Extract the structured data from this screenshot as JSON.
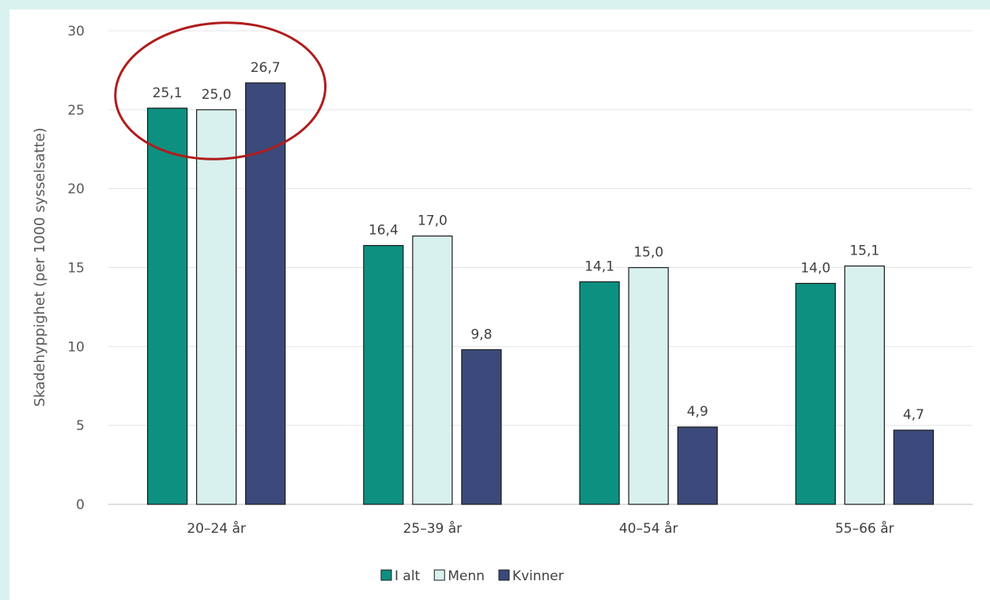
{
  "colors": {
    "page_background": "#d9f1ef",
    "highlight_ring": "#b01c1c"
  },
  "chart_data": {
    "type": "bar",
    "ylabel": "Skadehyppighet (per 1000 sysselsatte)",
    "xlabel": "",
    "ylim": [
      0,
      30
    ],
    "yticks": [
      0,
      5,
      10,
      15,
      20,
      25,
      30
    ],
    "grid": "horizontal",
    "legend_position": "bottom",
    "categories": [
      "20–24 år",
      "25–39 år",
      "40–54 år",
      "55–66 år"
    ],
    "series": [
      {
        "name": "I alt",
        "color": "#0e9080",
        "values": [
          25.1,
          16.4,
          14.1,
          14.0
        ],
        "labels": [
          "25,1",
          "16,4",
          "14,1",
          "14,0"
        ]
      },
      {
        "name": "Menn",
        "color": "#d8f0ee",
        "values": [
          25.0,
          17.0,
          15.0,
          15.1
        ],
        "labels": [
          "25,0",
          "17,0",
          "15,0",
          "15,1"
        ]
      },
      {
        "name": "Kvinner",
        "color": "#3b4a7a",
        "values": [
          26.7,
          9.8,
          4.9,
          4.7
        ],
        "labels": [
          "26,7",
          "9,8",
          "4,9",
          "4,7"
        ]
      }
    ],
    "annotation": {
      "type": "ellipse",
      "target_category": "20–24 år"
    }
  }
}
